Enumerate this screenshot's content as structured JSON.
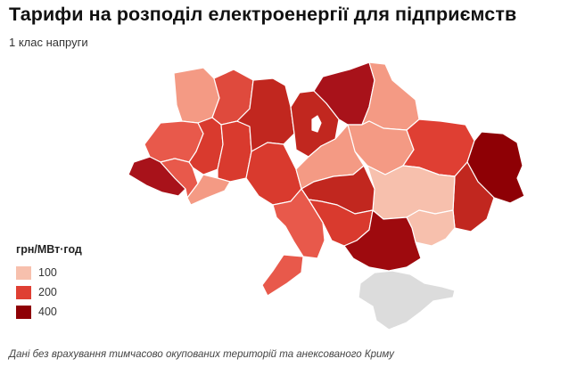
{
  "title": "Тарифи на розподіл електроенергії для підприємств",
  "subtitle": "1 клас напруги",
  "legend": {
    "title": "грн/МВт·год",
    "items": [
      {
        "label": "100",
        "color": "#f7c0ad"
      },
      {
        "label": "200",
        "color": "#df3f33"
      },
      {
        "label": "400",
        "color": "#8e0005"
      }
    ]
  },
  "footnote": "Дані без врахування тимчасово окупованих територій та анексованого Криму",
  "colors": {
    "level_100": "#f7c0ad",
    "level_150": "#f49a84",
    "level_200": "#e8594b",
    "level_250": "#d93a2e",
    "level_300": "#c1271f",
    "level_400": "#9e0a0e",
    "occupied": "#dcdcdc"
  }
}
